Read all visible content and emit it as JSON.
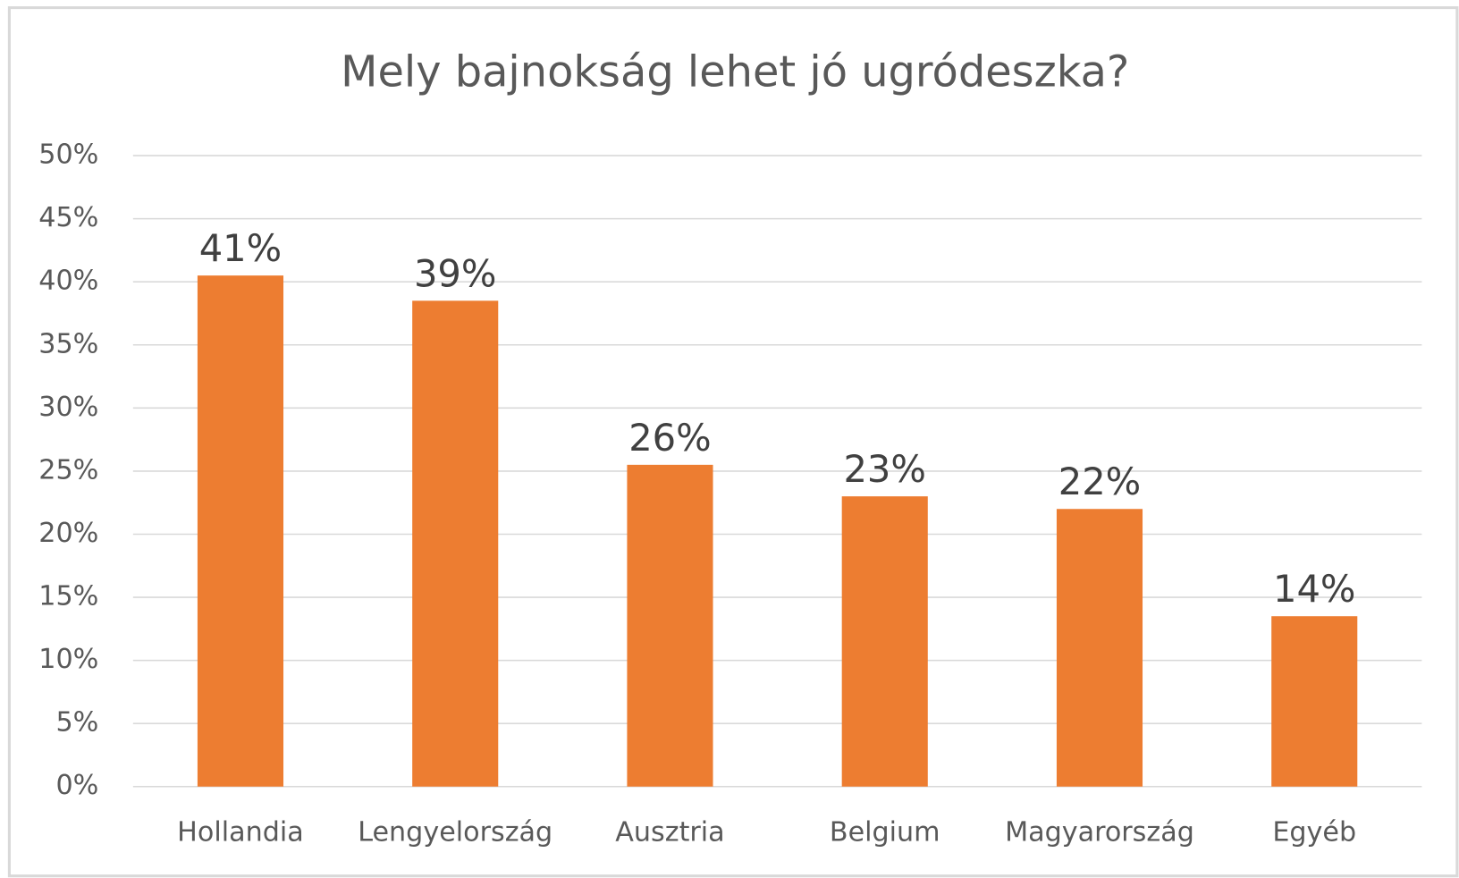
{
  "chart_data": {
    "type": "bar",
    "title": "Mely bajnokság lehet jó ugródeszka?",
    "categories": [
      "Hollandia",
      "Lengyelország",
      "Ausztria",
      "Belgium",
      "Magyarország",
      "Egyéb"
    ],
    "values": [
      40.5,
      38.5,
      25.5,
      23,
      22,
      13.5
    ],
    "value_labels": [
      "41%",
      "39%",
      "26%",
      "23%",
      "22%",
      "14%"
    ],
    "color": "#ED7D31",
    "ylim": [
      0,
      50
    ],
    "yticks": [
      {
        "value": 0,
        "label": "0%"
      },
      {
        "value": 5,
        "label": "5%"
      },
      {
        "value": 10,
        "label": "10%"
      },
      {
        "value": 15,
        "label": "15%"
      },
      {
        "value": 20,
        "label": "20%"
      },
      {
        "value": 25,
        "label": "25%"
      },
      {
        "value": 30,
        "label": "30%"
      },
      {
        "value": 35,
        "label": "35%"
      },
      {
        "value": 40,
        "label": "40%"
      },
      {
        "value": 45,
        "label": "45%"
      },
      {
        "value": 50,
        "label": "50%"
      }
    ],
    "grid": true
  }
}
